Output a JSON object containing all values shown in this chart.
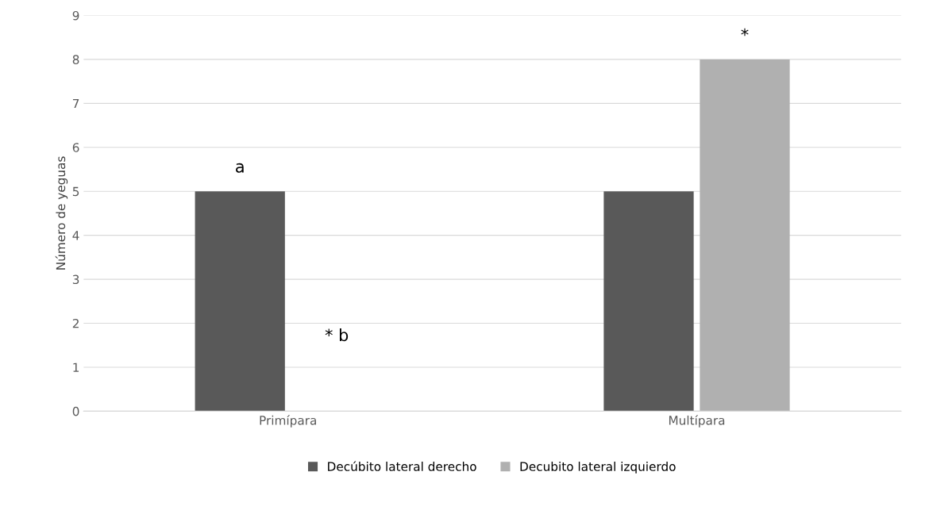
{
  "chart_data": {
    "type": "bar",
    "ylabel": "Número de yeguas",
    "categories": [
      "Primípara",
      "Multípara"
    ],
    "series": [
      {
        "name": "Decúbito lateral derecho",
        "color": "#595959",
        "values": [
          5,
          5
        ],
        "value_labels": [
          "a",
          null
        ]
      },
      {
        "name": "Decubito lateral izquierdo",
        "color": "#b0b0b0",
        "values": [
          0,
          8
        ],
        "value_labels": [
          null,
          "*"
        ]
      }
    ],
    "annotations": [
      {
        "text": "* b",
        "x": "Primípara",
        "y": 1.7
      }
    ],
    "ylim": [
      0,
      9
    ],
    "yticks": [
      0,
      1,
      2,
      3,
      4,
      5,
      6,
      7,
      8,
      9
    ],
    "grid": "y",
    "legend": "bottom"
  }
}
